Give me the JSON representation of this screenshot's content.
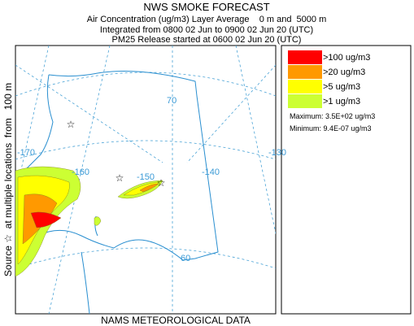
{
  "header": {
    "title": "NWS SMOKE FORECAST",
    "lines": [
      "Air Concentration (ug/m3) Layer Average    0 m and  5000 m",
      "Integrated from 0800 02 Jun to 0900 02 Jun 20 (UTC)",
      "PM25 Release started at 0600 02 Jun 20 (UTC)"
    ]
  },
  "side_label": "Source ☆  at multiple locations  from   100 m",
  "legend": {
    "items": [
      {
        "label": ">100 ug/m3",
        "color": "#ff0000"
      },
      {
        "label": ">20 ug/m3",
        "color": "#ff9900"
      },
      {
        "label": ">5 ug/m3",
        "color": "#ffff00"
      },
      {
        "label": ">1 ug/m3",
        "color": "#ccff33"
      }
    ],
    "maximum": "Maximum: 3.5E+02 ug/m3",
    "minimum": "Minimum: 9.4E-07 ug/m3"
  },
  "map": {
    "labels": [
      "-170",
      "-160",
      "-150",
      "-140",
      "-130",
      "70",
      "60"
    ]
  },
  "footer": "NAMS METEOROLOGICAL DATA"
}
